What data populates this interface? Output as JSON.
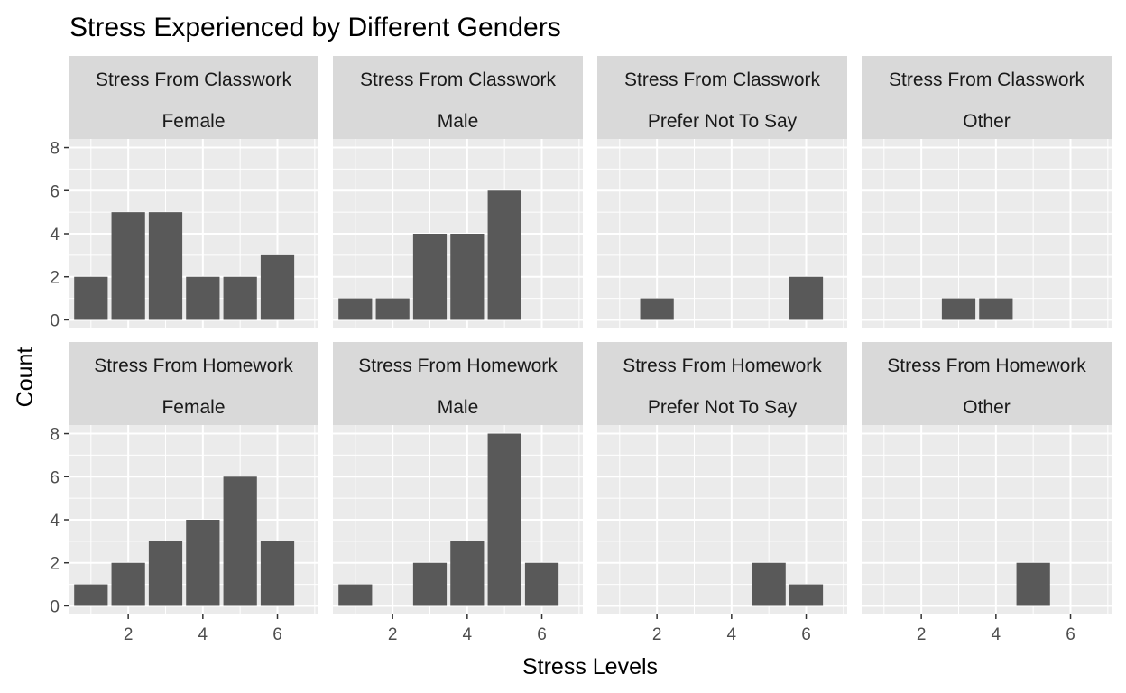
{
  "chart_data": {
    "type": "bar",
    "title": "Stress Experienced by Different Genders",
    "xlabel": "Stress Levels",
    "ylabel": "Count",
    "x_ticks": [
      2,
      4,
      6
    ],
    "y_ticks": [
      0,
      2,
      4,
      6,
      8
    ],
    "xlim": [
      0.4,
      7.1
    ],
    "ylim": [
      -0.4,
      8.4
    ],
    "grid": true,
    "bar_color": "#595959",
    "panel_background": "#ebebeb",
    "strip_background": "#d9d9d9",
    "rows": [
      {
        "strip_label": "Stress From Classwork",
        "panels": [
          {
            "strip_label": "Female",
            "bars": [
              {
                "x": 1,
                "y": 2
              },
              {
                "x": 2,
                "y": 5
              },
              {
                "x": 3,
                "y": 5
              },
              {
                "x": 4,
                "y": 2
              },
              {
                "x": 5,
                "y": 2
              },
              {
                "x": 6,
                "y": 3
              }
            ]
          },
          {
            "strip_label": "Male",
            "bars": [
              {
                "x": 1,
                "y": 1
              },
              {
                "x": 2,
                "y": 1
              },
              {
                "x": 3,
                "y": 4
              },
              {
                "x": 4,
                "y": 4
              },
              {
                "x": 5,
                "y": 6
              }
            ]
          },
          {
            "strip_label": "Prefer Not To Say",
            "bars": [
              {
                "x": 2,
                "y": 1
              },
              {
                "x": 6,
                "y": 2
              }
            ]
          },
          {
            "strip_label": "Other",
            "bars": [
              {
                "x": 3,
                "y": 1
              },
              {
                "x": 4,
                "y": 1
              }
            ]
          }
        ]
      },
      {
        "strip_label": "Stress From Homework",
        "panels": [
          {
            "strip_label": "Female",
            "bars": [
              {
                "x": 1,
                "y": 1
              },
              {
                "x": 2,
                "y": 2
              },
              {
                "x": 3,
                "y": 3
              },
              {
                "x": 4,
                "y": 4
              },
              {
                "x": 5,
                "y": 6
              },
              {
                "x": 6,
                "y": 3
              }
            ]
          },
          {
            "strip_label": "Male",
            "bars": [
              {
                "x": 1,
                "y": 1
              },
              {
                "x": 3,
                "y": 2
              },
              {
                "x": 4,
                "y": 3
              },
              {
                "x": 5,
                "y": 8
              },
              {
                "x": 6,
                "y": 2
              }
            ]
          },
          {
            "strip_label": "Prefer Not To Say",
            "bars": [
              {
                "x": 5,
                "y": 2
              },
              {
                "x": 6,
                "y": 1
              }
            ]
          },
          {
            "strip_label": "Other",
            "bars": [
              {
                "x": 5,
                "y": 2
              }
            ]
          }
        ]
      }
    ]
  }
}
